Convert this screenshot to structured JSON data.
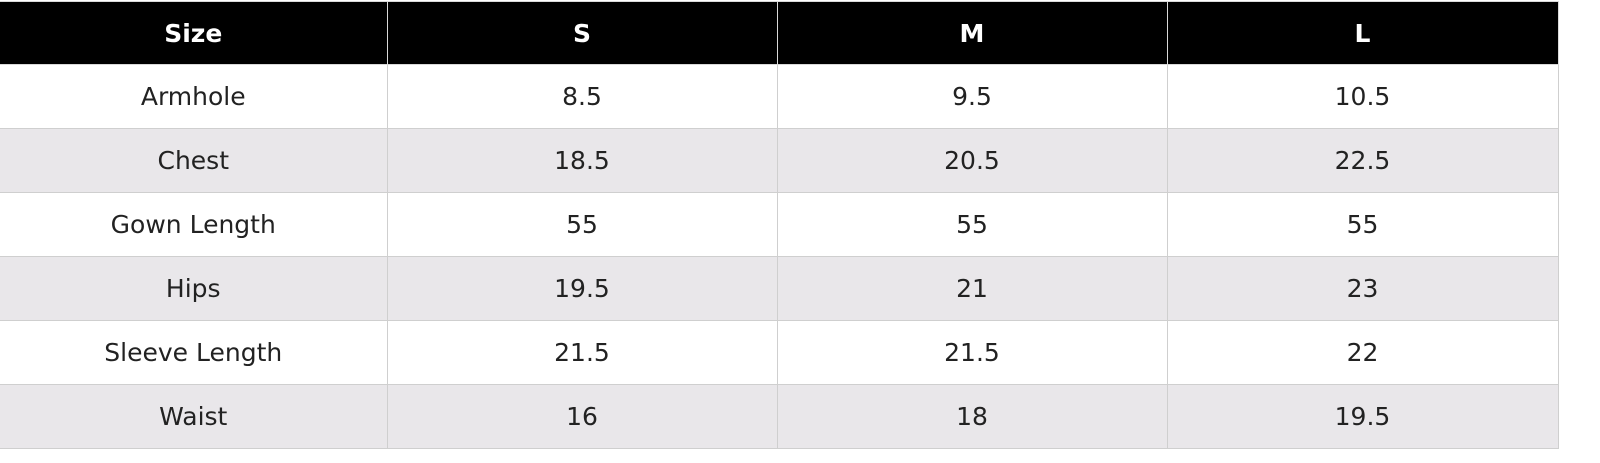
{
  "table": {
    "header": [
      "Size",
      "S",
      "M",
      "L"
    ],
    "rows": [
      [
        "Armhole",
        "8.5",
        "9.5",
        "10.5"
      ],
      [
        "Chest",
        "18.5",
        "20.5",
        "22.5"
      ],
      [
        "Gown Length",
        "55",
        "55",
        "55"
      ],
      [
        "Hips",
        "19.5",
        "21",
        "23"
      ],
      [
        "Sleeve Length",
        "21.5",
        "21.5",
        "22"
      ],
      [
        "Waist",
        "16",
        "18",
        "19.5"
      ]
    ]
  }
}
